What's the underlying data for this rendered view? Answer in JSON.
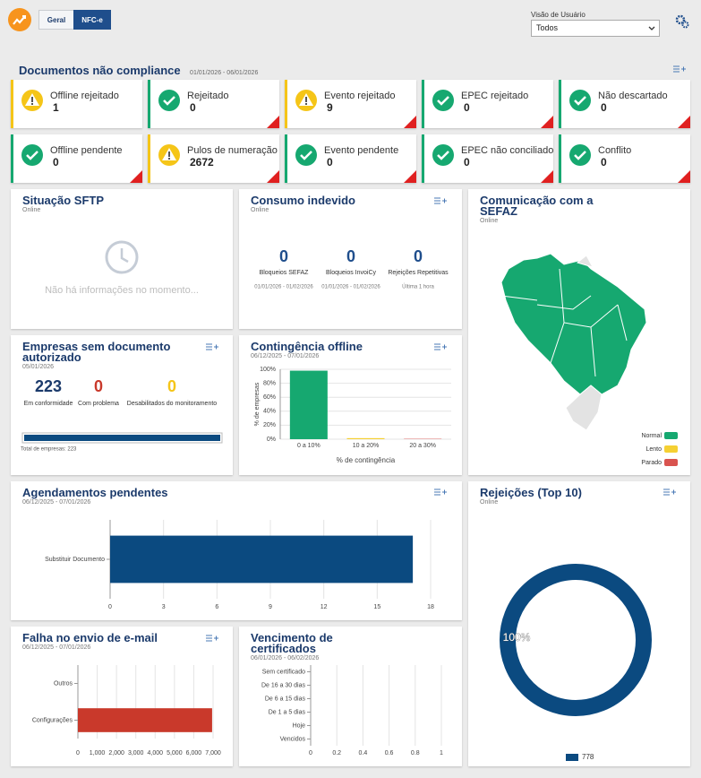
{
  "header": {
    "tabs": [
      "Geral",
      "NFC-e"
    ],
    "user_view_label": "Visão de Usuário",
    "user_view_value": "Todos"
  },
  "compliance": {
    "title": "Documentos não compliance",
    "date": "01/01/2026 - 06/01/2026",
    "cards": [
      {
        "label": "Offline rejeitado",
        "value": 1,
        "status": "warning"
      },
      {
        "label": "Rejeitado",
        "value": 0,
        "status": "ok"
      },
      {
        "label": "Evento rejeitado",
        "value": 9,
        "status": "warning"
      },
      {
        "label": "EPEC rejeitado",
        "value": 0,
        "status": "ok"
      },
      {
        "label": "Não descartado",
        "value": 0,
        "status": "ok"
      },
      {
        "label": "Offline pendente",
        "value": 0,
        "status": "ok"
      },
      {
        "label": "Pulos de numeração",
        "value": 2672,
        "status": "warning"
      },
      {
        "label": "Evento pendente",
        "value": 0,
        "status": "ok"
      },
      {
        "label": "EPEC não conciliado",
        "value": 0,
        "status": "ok"
      },
      {
        "label": "Conflito",
        "value": 0,
        "status": "ok"
      }
    ]
  },
  "sftp": {
    "title": "Situação SFTP",
    "subtitle": "Online",
    "message": "Não há informações no momento..."
  },
  "consumo": {
    "title": "Consumo indevido",
    "subtitle": "Online",
    "items": [
      {
        "value": 0,
        "label": "Bloqueios SEFAZ",
        "period": "01/01/2026 - 01/02/2026"
      },
      {
        "value": 0,
        "label": "Bloqueios InvoiCy",
        "period": "01/01/2026 - 01/02/2026"
      },
      {
        "value": 0,
        "label": "Rejeições Repetitivas",
        "period": "Última 1 hora"
      }
    ]
  },
  "sefaz": {
    "title": "Comunicação com a SEFAZ",
    "subtitle": "Online",
    "legend": [
      {
        "label": "Normal",
        "color": "#16a870"
      },
      {
        "label": "Lento",
        "color": "#f5d033"
      },
      {
        "label": "Parado",
        "color": "#d9534f"
      }
    ]
  },
  "empresas": {
    "title": "Empresas sem documento autorizado",
    "date": "05/01/2026",
    "items": [
      {
        "value": 223,
        "label": "Em conformidade",
        "color": "#1b3a6b"
      },
      {
        "value": 0,
        "label": "Com problema",
        "color": "#c9392b"
      },
      {
        "value": 0,
        "label": "Desabilitados do monitoramento",
        "color": "#f5c518"
      }
    ],
    "total": "Total de empresas: 223"
  },
  "chart_data": [
    {
      "type": "bar",
      "title": "Contingência offline",
      "subtitle": "06/12/2025 - 07/01/2026",
      "categories": [
        "0 a 10%",
        "10 a 20%",
        "20 a 30%"
      ],
      "values": [
        98,
        1.5,
        0.5
      ],
      "colors": [
        "#16a870",
        "#f5d033",
        "#d9534f"
      ],
      "ylim": [
        0,
        100
      ],
      "yticks": [
        {
          "value": 0,
          "label": "0%"
        },
        {
          "value": 20,
          "label": "20%"
        },
        {
          "value": 40,
          "label": "40%"
        },
        {
          "value": 60,
          "label": "60%"
        },
        {
          "value": 80,
          "label": "80%"
        },
        {
          "value": 100,
          "label": "100%"
        }
      ],
      "xlabel": "% de contingência",
      "ylabel": "% de empresas",
      "grid": true
    },
    {
      "type": "hbar",
      "title": "Agendamentos pendentes",
      "subtitle": "06/12/2025 - 07/01/2026",
      "categories": [
        "Substituir Documento"
      ],
      "values": [
        17
      ],
      "color": "#0b4a80",
      "xlim": [
        0,
        18
      ],
      "xticks": [
        0,
        3,
        6,
        9,
        12,
        15,
        18
      ],
      "grid": true
    },
    {
      "type": "hbar",
      "title": "Falha no envio de e-mail",
      "subtitle": "06/12/2025 - 07/01/2026",
      "categories": [
        "Outros",
        "Configurações"
      ],
      "values": [
        0,
        6950
      ],
      "color": "#c9392b",
      "xlim": [
        0,
        7000
      ],
      "xticks": [
        0,
        {
          "value": 1000,
          "label": "1,000"
        },
        {
          "value": 2000,
          "label": "2,000"
        },
        {
          "value": 3000,
          "label": "3,000"
        },
        {
          "value": 4000,
          "label": "4,000"
        },
        {
          "value": 5000,
          "label": "5,000"
        },
        {
          "value": 6000,
          "label": "6,000"
        },
        {
          "value": 7000,
          "label": "7,000"
        }
      ],
      "grid": true
    },
    {
      "type": "hbar",
      "title": "Vencimento de certificados",
      "subtitle": "06/01/2026 - 06/02/2026",
      "categories": [
        "Sem certificado",
        "De 16 a 30 dias",
        "De 6 a 15 dias",
        "De 1 a 5 dias",
        "Hoje",
        "Vencidos"
      ],
      "values": [
        0,
        0,
        0,
        0,
        0,
        0
      ],
      "color": "#0b4a80",
      "xlim": [
        0,
        1
      ],
      "xticks": [
        0,
        0.2,
        0.4,
        0.6,
        0.8,
        1
      ],
      "grid": true
    },
    {
      "type": "donut",
      "title": "Rejeições (Top 10)",
      "subtitle": "Online",
      "categories": [
        "778"
      ],
      "values": [
        100
      ],
      "value_labels": [
        "100%"
      ],
      "colors": [
        "#0b4a80"
      ]
    }
  ]
}
